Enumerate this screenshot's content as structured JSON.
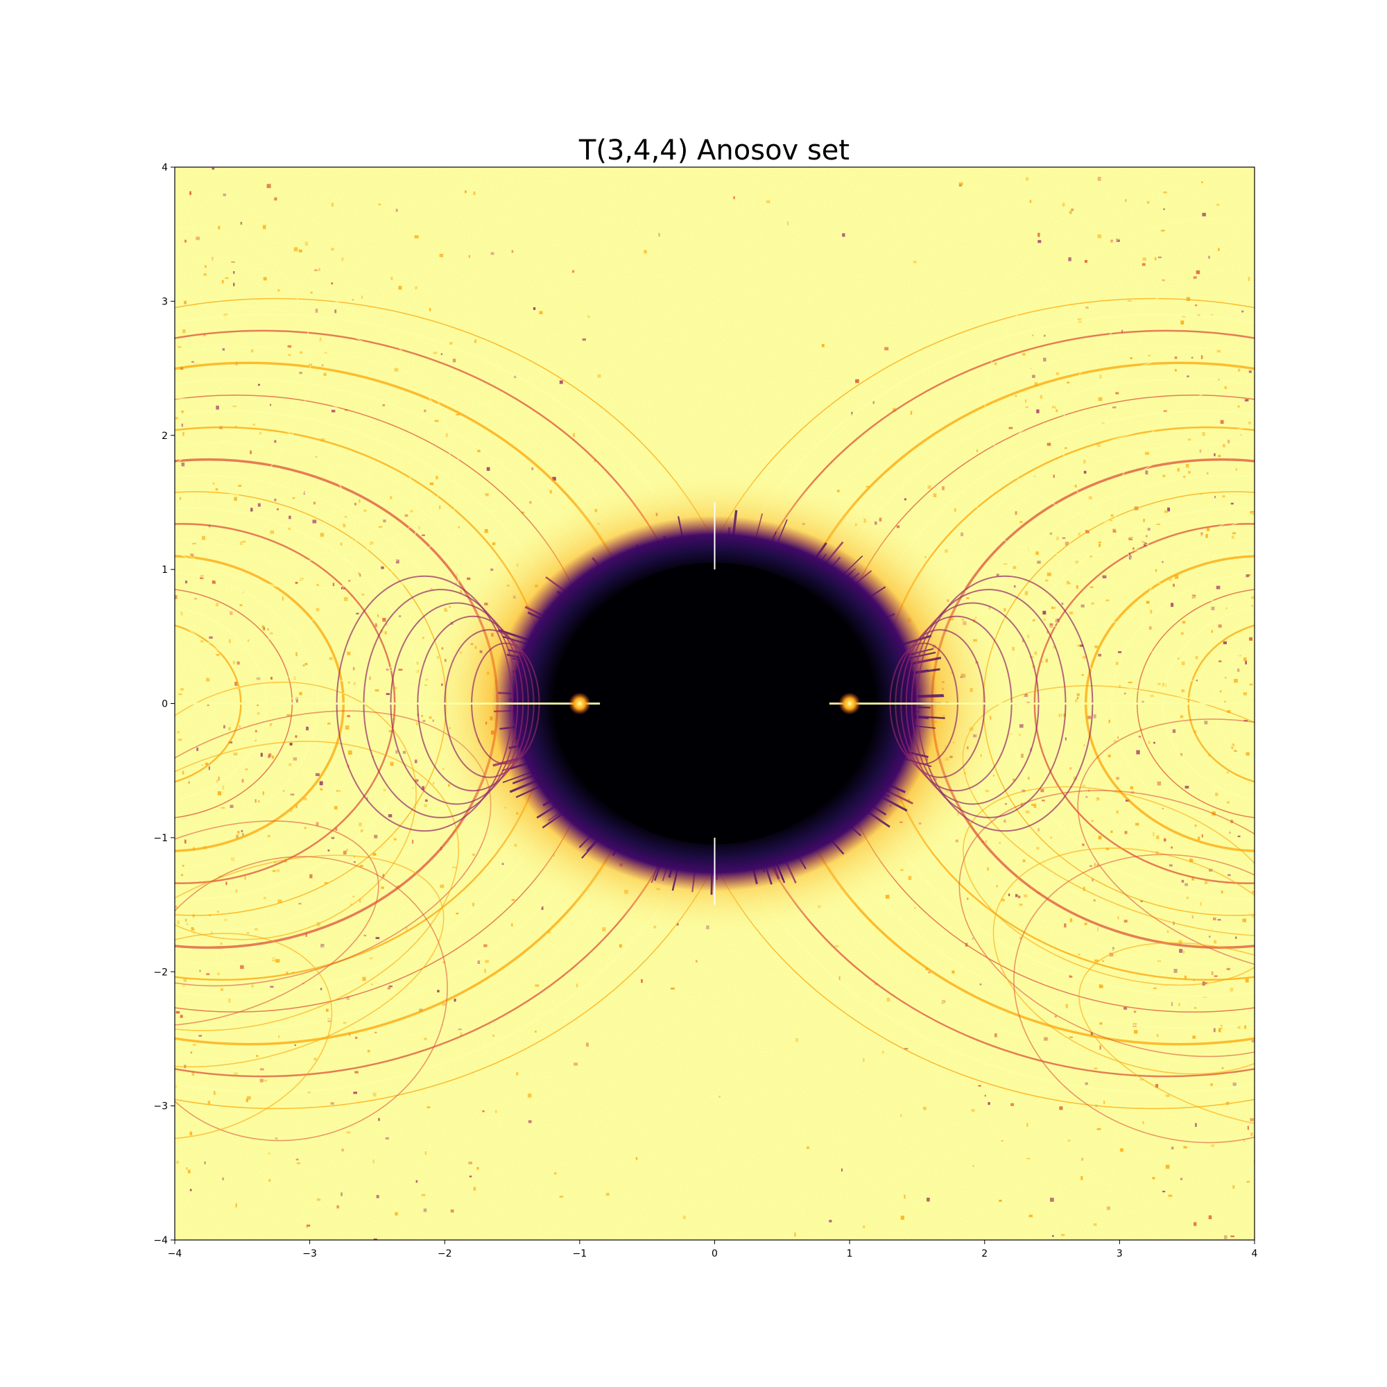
{
  "chart_data": {
    "type": "heatmap",
    "title": "T(3,4,4) Anosov set",
    "xlabel": "",
    "ylabel": "",
    "xlim": [
      -4,
      4
    ],
    "ylim": [
      -4,
      4
    ],
    "x_ticks": [
      -4,
      -3,
      -2,
      -1,
      0,
      1,
      2,
      3,
      4
    ],
    "y_ticks": [
      -4,
      -3,
      -2,
      -1,
      0,
      1,
      2,
      3,
      4
    ],
    "x_tick_labels": [
      "−4",
      "−3",
      "−2",
      "−1",
      "0",
      "1",
      "2",
      "3",
      "4"
    ],
    "y_tick_labels": [
      "−4",
      "−3",
      "−2",
      "−1",
      "0",
      "1",
      "2",
      "3",
      "4"
    ],
    "grid": false,
    "legend": "none",
    "colormap": "inferno",
    "colors": {
      "low": "#000004",
      "mid_low": "#420a68",
      "mid": "#932667",
      "mid_high": "#dd513a",
      "high_orange": "#fca50a",
      "high": "#fcffa4"
    },
    "symmetry": "mirror-symmetric about x = 0 and y = 0"
  }
}
